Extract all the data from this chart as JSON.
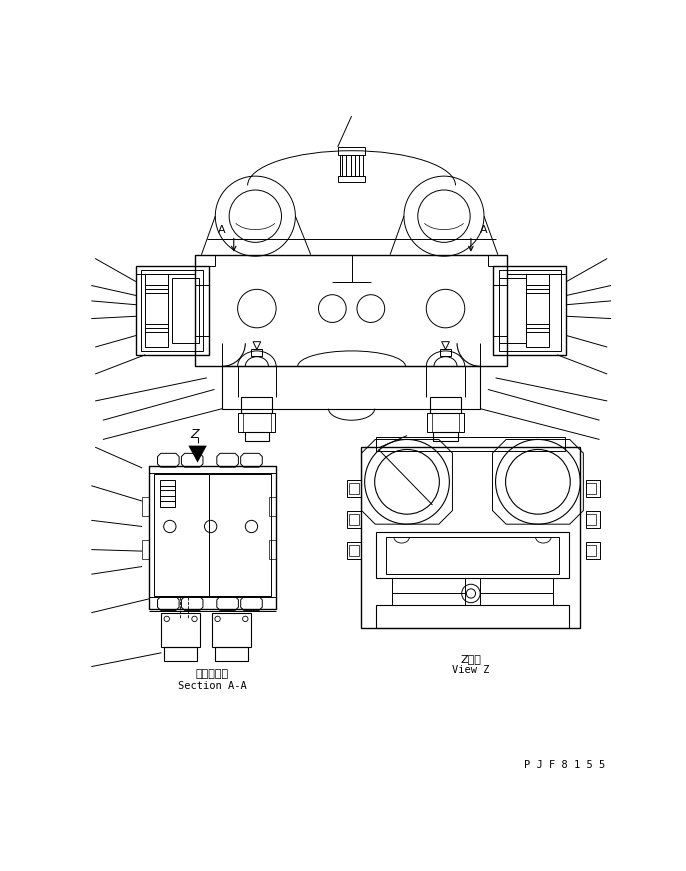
{
  "bg_color": "#ffffff",
  "line_color": "#000000",
  "title_bottom_right": "P J F 8 1 5 5",
  "label_section_aa_jp": "断面Ａ－Ａ",
  "label_section_aa_en": "Section A-A",
  "label_view_z_jp": "Z　視",
  "label_view_z_en": "View Z"
}
